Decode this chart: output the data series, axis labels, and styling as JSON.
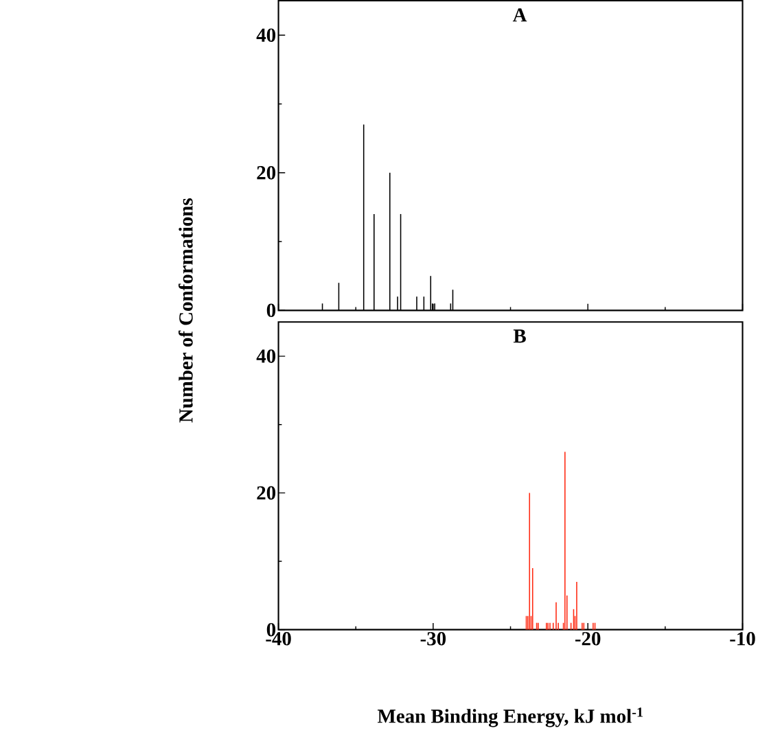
{
  "chart_data": [
    {
      "type": "bar",
      "title": "A",
      "ylabel": "Number of Conformations",
      "xlim": [
        -40,
        -10
      ],
      "ylim": [
        0,
        45
      ],
      "xticks": [
        -40,
        -30,
        -20,
        -10
      ],
      "yticks": [
        0,
        20,
        40
      ],
      "tick_labels": "y",
      "series": [
        {
          "color": "#000000",
          "x": [
            -37.16,
            -36.1,
            -34.49,
            -33.82,
            -32.8,
            -32.3,
            -32.1,
            -31.06,
            -30.6,
            -30.16,
            -30.05,
            -29.9,
            -28.87,
            -28.73
          ],
          "values": [
            1,
            4,
            27,
            14,
            20,
            2,
            14,
            2,
            2,
            5,
            1,
            1,
            1,
            3
          ]
        }
      ]
    },
    {
      "type": "bar",
      "title": "B",
      "xlabel": "Mean Binding Energy, kJ mol$^{-1}$",
      "xlim": [
        -40,
        -10
      ],
      "ylim": [
        0,
        45
      ],
      "xticks": [
        -40,
        -30,
        -20,
        -10
      ],
      "yticks": [
        0,
        20,
        40
      ],
      "series": [
        {
          "color": "#ff2a12",
          "x": [
            -23.98,
            -23.88,
            -23.77,
            -23.67,
            -23.57,
            -23.31,
            -23.21,
            -22.68,
            -22.58,
            -22.45,
            -22.24,
            -22.05,
            -21.91,
            -21.58,
            -21.48,
            -21.35,
            -21.09,
            -20.92,
            -20.83,
            -20.72,
            -20.37,
            -20.26,
            -19.66,
            -19.54
          ],
          "values": [
            2,
            2,
            20,
            2,
            9,
            1,
            1,
            1,
            1,
            1,
            1,
            4,
            1,
            1,
            26,
            5,
            1,
            3,
            2,
            7,
            1,
            1,
            1,
            1
          ]
        }
      ]
    }
  ]
}
